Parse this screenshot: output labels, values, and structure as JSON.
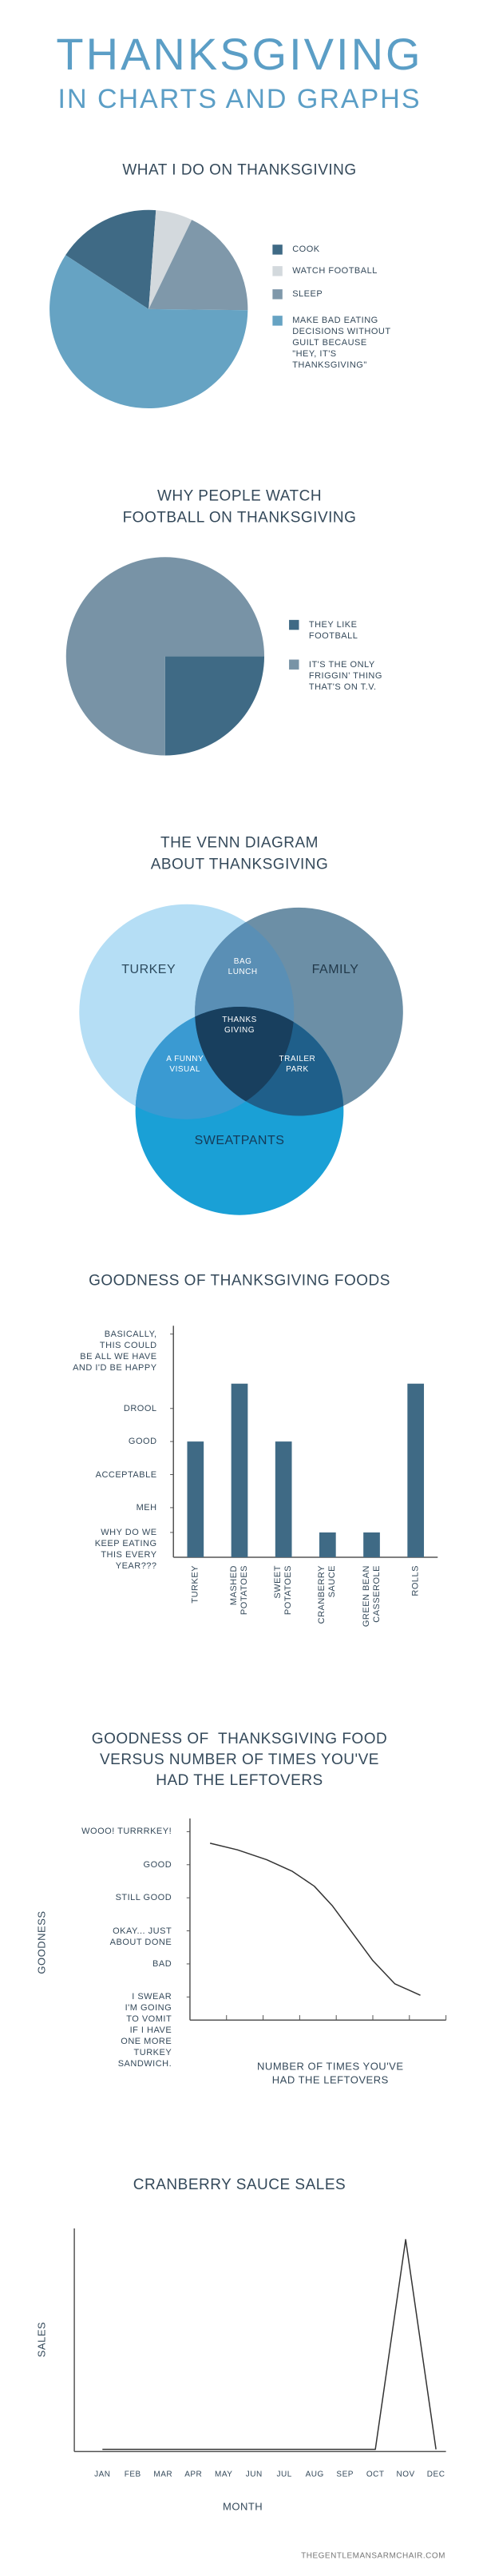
{
  "header": {
    "title": "THANKSGIVING",
    "subtitle": "IN CHARTS AND GRAPHS"
  },
  "chart_data": [
    {
      "type": "pie",
      "title": "WHAT I DO ON THANKSGIVING",
      "categories": [
        "COOK",
        "WATCH FOOTBALL",
        "SLEEP",
        "MAKE BAD EATING\nDECISIONS WITHOUT\nGUILT BECAUSE\n\"HEY, IT'S\nTHANKSGIVING\""
      ],
      "values": [
        17,
        6,
        18,
        59
      ],
      "colors": [
        "#3f6a85",
        "#d3d9dd",
        "#7f98aa",
        "#66a3c3"
      ]
    },
    {
      "type": "pie",
      "title": "WHY PEOPLE WATCH\nFOOTBALL ON THANKSGIVING",
      "categories": [
        "THEY LIKE\nFOOTBALL",
        "IT'S THE ONLY\nFRIGGIN' THING\nTHAT'S ON T.V."
      ],
      "values": [
        25,
        75
      ],
      "colors": [
        "#3f6a85",
        "#7893a6"
      ]
    },
    {
      "type": "bar",
      "title": "GOODNESS OF THANKSGIVING FOODS",
      "categories": [
        "TURKEY",
        "MASHED\nPOTATOES",
        "SWEET\nPOTATOES",
        "CRANBERRY\nSAUCE",
        "GREEN BEAN\nCASSEROLE",
        "ROLLS"
      ],
      "values": [
        7,
        10.5,
        7,
        1.5,
        1.5,
        10.5
      ],
      "color": "#3f6a85",
      "ylim": [
        0,
        14
      ],
      "yticks": [
        {
          "value": 1.5,
          "label": "WHY DO WE\nKEEP EATING\nTHIS EVERY\nYEAR???"
        },
        {
          "value": 3,
          "label": "MEH"
        },
        {
          "value": 5,
          "label": "ACCEPTABLE"
        },
        {
          "value": 7,
          "label": "GOOD"
        },
        {
          "value": 9,
          "label": "DROOL"
        },
        {
          "value": 13.5,
          "label": "BASICALLY,\nTHIS COULD\nBE ALL WE HAVE\nAND I'D BE HAPPY"
        }
      ]
    },
    {
      "type": "line",
      "title": "GOODNESS OF  THANKSGIVING FOOD\nVERSUS NUMBER OF TIMES YOU'VE\nHAD THE LEFTOVERS",
      "x_label": "NUMBER OF TIMES YOU'VE\nHAD THE LEFTOVERS",
      "y_label": "GOODNESS",
      "x": [
        0.55,
        1.3,
        2.1,
        2.8,
        3.4,
        3.9,
        4.4,
        5.0,
        5.6,
        6.3
      ],
      "values": [
        5.65,
        5.45,
        5.15,
        4.8,
        4.35,
        3.75,
        3.0,
        2.1,
        1.4,
        1.05
      ],
      "color": "#333333",
      "xlim": [
        0,
        7
      ],
      "xticks": [
        1,
        2,
        3,
        4,
        5,
        6,
        7
      ],
      "ylim": [
        0.3,
        6.4
      ],
      "yticks": [
        {
          "value": 1,
          "label": "I SWEAR\nI'M GOING\nTO VOMIT\nIF I HAVE\nONE MORE\nTURKEY\nSANDWICH."
        },
        {
          "value": 2,
          "label": "BAD"
        },
        {
          "value": 3,
          "label": "OKAY... JUST\nABOUT DONE"
        },
        {
          "value": 4,
          "label": "STILL GOOD"
        },
        {
          "value": 5,
          "label": "GOOD"
        },
        {
          "value": 6,
          "label": "WOOO! TURRRKEY!"
        }
      ]
    },
    {
      "type": "line",
      "title": "CRANBERRY SAUCE SALES",
      "x_label": "MONTH",
      "y_label": "SALES",
      "categories": [
        "JAN",
        "FEB",
        "MAR",
        "APR",
        "MAY",
        "JUN",
        "JUL",
        "AUG",
        "SEP",
        "OCT",
        "NOV",
        "DEC"
      ],
      "values": [
        1,
        1,
        1,
        1,
        1,
        1,
        1,
        1,
        1,
        1,
        95,
        1
      ],
      "color": "#333333",
      "ylim": [
        0,
        100
      ]
    }
  ],
  "venn": {
    "title": "THE VENN DIAGRAM\nABOUT THANKSGIVING",
    "sets": [
      "TURKEY",
      "FAMILY",
      "SWEATPANTS"
    ],
    "regions": [
      "BAG\nLUNCH",
      "THANKS\nGIVING",
      "A FUNNY\nVISUAL",
      "TRAILER\nPARK"
    ]
  },
  "footer": "THEGENTLEMANSARMCHAIR.COM"
}
